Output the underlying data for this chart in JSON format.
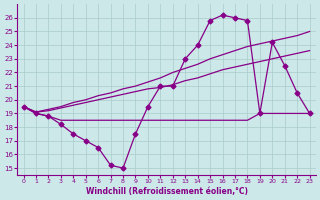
{
  "xlabel": "Windchill (Refroidissement éolien,°C)",
  "background_color": "#cce8e8",
  "grid_color": "#aacccc",
  "line_color": "#880088",
  "ylim": [
    14.5,
    27.0
  ],
  "xlim": [
    -0.5,
    23.5
  ],
  "yticks": [
    15,
    16,
    17,
    18,
    19,
    20,
    21,
    22,
    23,
    24,
    25,
    26
  ],
  "xticks": [
    0,
    1,
    2,
    3,
    4,
    5,
    6,
    7,
    8,
    9,
    10,
    11,
    12,
    13,
    14,
    15,
    16,
    17,
    18,
    19,
    20,
    21,
    22,
    23
  ],
  "series1_x": [
    0,
    1,
    2,
    3,
    4,
    5,
    6,
    7,
    8,
    9,
    10,
    11,
    12,
    13,
    14,
    15,
    16,
    17,
    18,
    19,
    20,
    21,
    22,
    23
  ],
  "series1_y": [
    19.5,
    19.0,
    18.8,
    18.2,
    17.5,
    17.0,
    16.5,
    15.2,
    15.0,
    17.5,
    19.5,
    21.0,
    21.0,
    23.0,
    24.0,
    25.8,
    26.2,
    26.0,
    25.8,
    19.0,
    24.2,
    22.5,
    20.5,
    19.0
  ],
  "series2_x": [
    0,
    1,
    2,
    3,
    4,
    5,
    6,
    7,
    8,
    9,
    10,
    11,
    12,
    13,
    14,
    15,
    16,
    17,
    18,
    19,
    20,
    21,
    22,
    23
  ],
  "series2_y": [
    19.5,
    19.1,
    19.3,
    19.5,
    19.8,
    20.0,
    20.3,
    20.5,
    20.8,
    21.0,
    21.3,
    21.6,
    22.0,
    22.3,
    22.6,
    23.0,
    23.3,
    23.6,
    23.9,
    24.1,
    24.3,
    24.5,
    24.7,
    25.0
  ],
  "series3_x": [
    0,
    1,
    2,
    3,
    4,
    5,
    6,
    7,
    8,
    9,
    10,
    11,
    12,
    13,
    14,
    15,
    16,
    17,
    18,
    19,
    20,
    21,
    22,
    23
  ],
  "series3_y": [
    19.5,
    19.1,
    19.2,
    19.4,
    19.6,
    19.8,
    20.0,
    20.2,
    20.4,
    20.6,
    20.8,
    20.9,
    21.1,
    21.4,
    21.6,
    21.9,
    22.2,
    22.4,
    22.6,
    22.8,
    23.0,
    23.2,
    23.4,
    23.6
  ],
  "series4_x": [
    0,
    1,
    2,
    3,
    4,
    5,
    6,
    7,
    8,
    9,
    10,
    11,
    12,
    13,
    14,
    15,
    16,
    17,
    18,
    19,
    20,
    21,
    22,
    23
  ],
  "series4_y": [
    19.5,
    19.0,
    18.8,
    18.5,
    18.5,
    18.5,
    18.5,
    18.5,
    18.5,
    18.5,
    18.5,
    18.5,
    18.5,
    18.5,
    18.5,
    18.5,
    18.5,
    18.5,
    18.5,
    19.0,
    19.0,
    19.0,
    19.0,
    19.0
  ]
}
